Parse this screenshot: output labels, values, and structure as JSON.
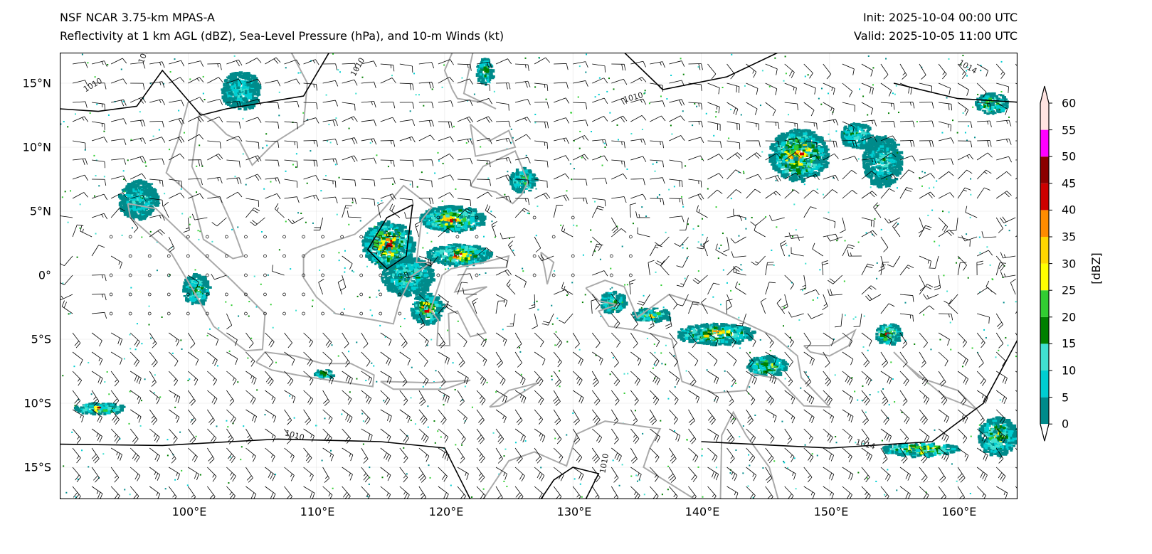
{
  "header": {
    "title_line1": "NSF NCAR 3.75-km MPAS-A",
    "title_line2": "Reflectivity at 1 km AGL (dBZ), Sea-Level Pressure (hPa), and 10-m Winds (kt)",
    "init": "Init: 2025-10-04 00:00 UTC",
    "valid": "Valid: 2025-10-05 11:00 UTC"
  },
  "axes": {
    "lon_labels": [
      "100°E",
      "110°E",
      "120°E",
      "130°E",
      "140°E",
      "150°E",
      "160°E"
    ],
    "lat_labels": [
      "15°N",
      "10°N",
      "5°N",
      "0°",
      "5°S",
      "10°S",
      "15°S"
    ],
    "lon_range": [
      90,
      165
    ],
    "lat_range": [
      -17.5,
      17.4
    ]
  },
  "isobar_labels": [
    "1010",
    "1014",
    "1010",
    "1010",
    "1010",
    "1014",
    "1014",
    "1010",
    "1010"
  ],
  "colorbar": {
    "unit": "[dBZ]",
    "ticks": [
      "0",
      "5",
      "10",
      "15",
      "20",
      "25",
      "30",
      "35",
      "40",
      "45",
      "50",
      "55",
      "60"
    ],
    "colors": [
      "#008B8B",
      "#00CED1",
      "#40E0D0",
      "#008000",
      "#32CD32",
      "#FFFF00",
      "#FFD700",
      "#FF8C00",
      "#CD0000",
      "#8B0000",
      "#FF00FF",
      "#FFE4E1"
    ],
    "over_color": "#FFE4E1",
    "under_color": "#FFFFFF"
  }
}
